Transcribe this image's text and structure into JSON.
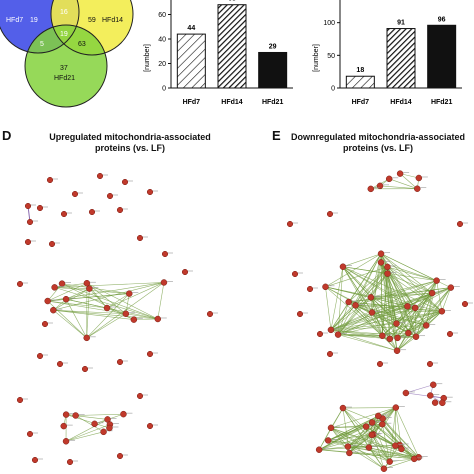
{
  "venn": {
    "sets": [
      "HFd7",
      "HFd14",
      "HFd21"
    ],
    "colors": {
      "HFd7": "#4a56e8",
      "HFd14": "#f2ec4a",
      "HFd21": "#84d23c"
    },
    "counts": {
      "only_a": "19",
      "a_b": "16",
      "only_b": "59",
      "a_c": "5",
      "abc": "19",
      "b_c": "63",
      "only_c": "37"
    }
  },
  "chart_data": [
    {
      "type": "bar",
      "ylabel": "[number]",
      "ylim": [
        0,
        80
      ],
      "yticks": [
        "0",
        "20",
        "40",
        "60"
      ],
      "categories": [
        "HFd7",
        "HFd14",
        "HFd21"
      ],
      "values": [
        44,
        68,
        29
      ],
      "fill_styles": [
        "light-hatch",
        "dark-hatch",
        "solid"
      ]
    },
    {
      "type": "bar",
      "ylabel": "[number]",
      "ylim": [
        0,
        150
      ],
      "yticks": [
        "0",
        "50",
        "100"
      ],
      "categories": [
        "HFd7",
        "HFd14",
        "HFd21"
      ],
      "values": [
        18,
        91,
        96
      ],
      "fill_styles": [
        "light-hatch",
        "dark-hatch",
        "solid"
      ]
    }
  ],
  "panelD": {
    "letter": "D",
    "title_line1": "Upregulated mitochondria-associated",
    "title_line2": "proteins (vs. LF)"
  },
  "panelE": {
    "letter": "E",
    "title_line1": "Downregulated mitochondria-associated",
    "title_line2": "proteins (vs. LF)"
  },
  "colors": {
    "node": "#c0392b",
    "edge_green": "#6f9a3a",
    "edge_purple": "#8a6ab0"
  }
}
